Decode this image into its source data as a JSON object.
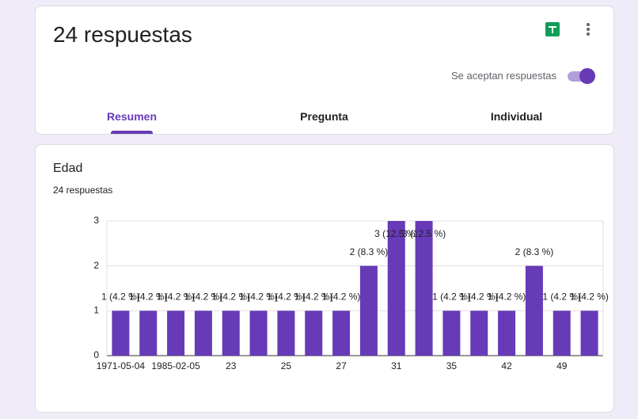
{
  "header": {
    "title": "24 respuestas",
    "toggle_label": "Se aceptan respuestas",
    "tabs": [
      "Resumen",
      "Pregunta",
      "Individual"
    ]
  },
  "chart_data": {
    "type": "bar",
    "title": "Edad",
    "subtitle": "24 respuestas",
    "categories": [
      "1971-05-04",
      null,
      "1985-02-05",
      null,
      "23",
      null,
      "25",
      null,
      "27",
      null,
      "31",
      null,
      "35",
      null,
      "42",
      null,
      "49",
      null
    ],
    "values": [
      1,
      1,
      1,
      1,
      1,
      1,
      1,
      1,
      1,
      2,
      3,
      3,
      1,
      1,
      1,
      2,
      1,
      1
    ],
    "value_labels": [
      "1 (4.2 %)",
      "1 (4.2 %)",
      "1 (4.2 %)",
      "1 (4.2 %)",
      "1 (4.2 %)",
      "1 (4.2 %)",
      "1 (4.2 %)",
      "1 (4.2 %)",
      "1 (4.2 %)",
      "2 (8.3 %)",
      "3 (12.5 %)",
      "3 (12.5 %)",
      "1 (4.2 %)",
      "1 (4.2 %)",
      "1 (4.2 %)",
      "2 (8.3 %)",
      "1 (4.2 %)",
      "1 (4.2 %)"
    ],
    "color": "#673ab7",
    "ylim": [
      0,
      3
    ],
    "yticks": [
      0,
      1,
      2,
      3
    ],
    "grid": true
  }
}
